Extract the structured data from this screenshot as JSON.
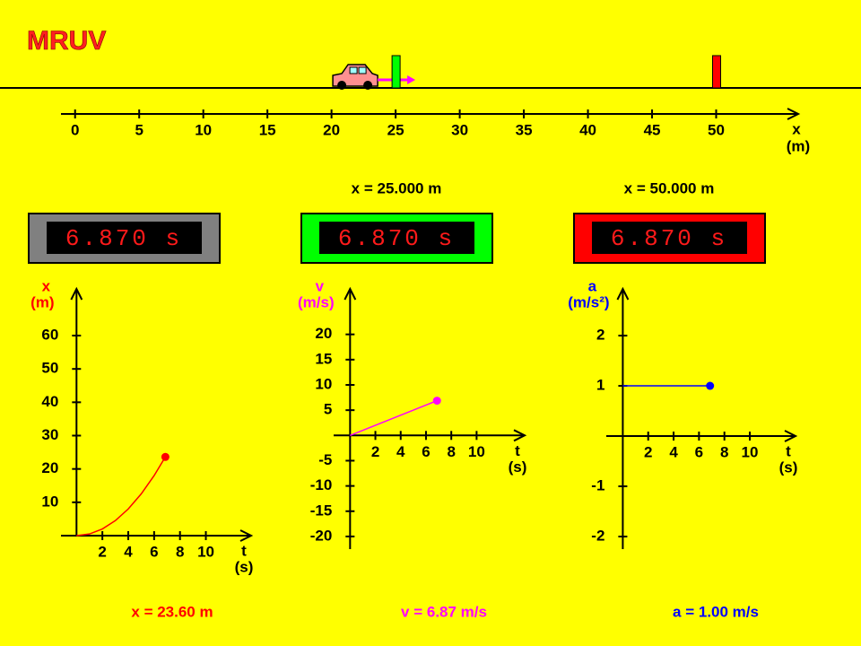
{
  "title": "MRUV",
  "track": {
    "xlim": [
      -1.1,
      56.4
    ],
    "ticks": [
      0,
      5,
      10,
      15,
      20,
      25,
      30,
      35,
      40,
      45,
      50
    ],
    "label": "x",
    "unit": "(m)",
    "car_x": 23.6
  },
  "timers": [
    {
      "reading": "6.870 s",
      "color": "#808080"
    },
    {
      "reading": "6.870 s",
      "color": "#00ff00",
      "label": "x = 25.000 m",
      "x": 25
    },
    {
      "reading": "6.870 s",
      "color": "#ff0000",
      "label": "x = 50.000 m",
      "x": 50
    }
  ],
  "chart_data": [
    {
      "type": "line",
      "ylabel": "x",
      "yunit": "(m)",
      "xlabel": "t",
      "xunit": "(s)",
      "color": "#ff0000",
      "x": [
        0,
        1,
        2,
        3,
        4,
        5,
        6,
        6.87
      ],
      "values": [
        0,
        0.5,
        2,
        4.5,
        8,
        12.5,
        18,
        23.6
      ],
      "xlim": [
        -1.2,
        13.5
      ],
      "ylim": [
        0,
        74
      ],
      "xticks": [
        2,
        4,
        6,
        8,
        10
      ],
      "yticks": [
        10,
        20,
        30,
        40,
        50,
        60
      ],
      "readout": "x = 23.60 m"
    },
    {
      "type": "line",
      "ylabel": "v",
      "yunit": "(m/s)",
      "xlabel": "t",
      "xunit": "(s)",
      "color": "#ff00ff",
      "x": [
        0,
        6.87
      ],
      "values": [
        0,
        6.87
      ],
      "xlim": [
        -1.3,
        13.8
      ],
      "ylim": [
        -22.5,
        29
      ],
      "xticks": [
        2,
        4,
        6,
        8,
        10
      ],
      "yticks": [
        -20,
        -15,
        -10,
        -5,
        5,
        10,
        15,
        20
      ],
      "readout": "v = 6.87 m/s"
    },
    {
      "type": "line",
      "ylabel": "a",
      "yunit": "(m/s²)",
      "xlabel": "t",
      "xunit": "(s)",
      "color": "#0000ff",
      "x": [
        0,
        6.87
      ],
      "values": [
        1,
        1
      ],
      "xlim": [
        -1.3,
        13.6
      ],
      "ylim": [
        -2.25,
        2.93
      ],
      "xticks": [
        2,
        4,
        6,
        8,
        10
      ],
      "yticks": [
        -2,
        -1,
        1,
        2
      ],
      "readout": "a = 1.00 m/s"
    }
  ]
}
